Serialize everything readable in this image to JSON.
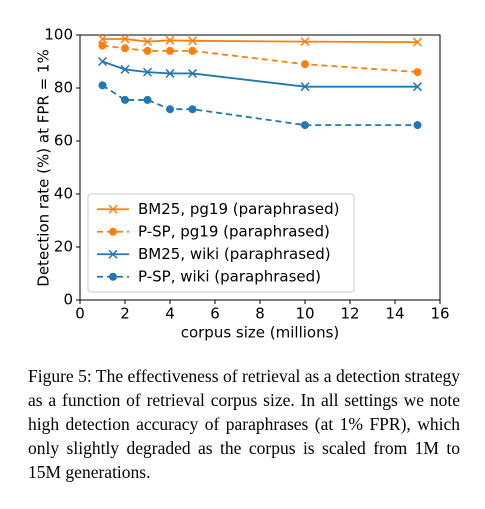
{
  "chart_data": {
    "type": "line",
    "ylabel": "Detection rate (%) at FPR = 1%",
    "xlabel": "corpus size (millions)",
    "x": [
      1,
      2,
      3,
      4,
      5,
      10,
      15
    ],
    "series": [
      {
        "name": "BM25, pg19 (paraphrased)",
        "color": "#ff7f0e",
        "linestyle": "solid",
        "marker": "x",
        "values": [
          98.5,
          98.5,
          97.5,
          98,
          97.8,
          97.5,
          97.3
        ]
      },
      {
        "name": "P-SP, pg19 (paraphrased)",
        "color": "#ff7f0e",
        "linestyle": "dashed",
        "marker": "o",
        "values": [
          96,
          95,
          94,
          94,
          94,
          89,
          86
        ]
      },
      {
        "name": "BM25, wiki (paraphrased)",
        "color": "#1f77b4",
        "linestyle": "solid",
        "marker": "x",
        "values": [
          90,
          87,
          86,
          85.5,
          85.5,
          80.5,
          80.5
        ]
      },
      {
        "name": "P-SP, wiki (paraphrased)",
        "color": "#1f77b4",
        "linestyle": "dashed",
        "marker": "o",
        "values": [
          81,
          75.5,
          75.5,
          72,
          72,
          66,
          66
        ]
      }
    ],
    "xlim": [
      0,
      16
    ],
    "xticks": [
      0,
      2,
      4,
      6,
      8,
      10,
      12,
      14,
      16
    ],
    "ylim": [
      0,
      100
    ],
    "yticks": [
      0,
      20,
      40,
      60,
      80,
      100
    ],
    "grid": false,
    "legend": "lower left"
  },
  "caption": "Figure 5: The effectiveness of retrieval as a detection strategy as a function of retrieval corpus size. In all settings we note high detection accuracy of paraphrases (at 1% FPR), which only slightly degraded as the corpus is scaled from 1M to 15M generations."
}
